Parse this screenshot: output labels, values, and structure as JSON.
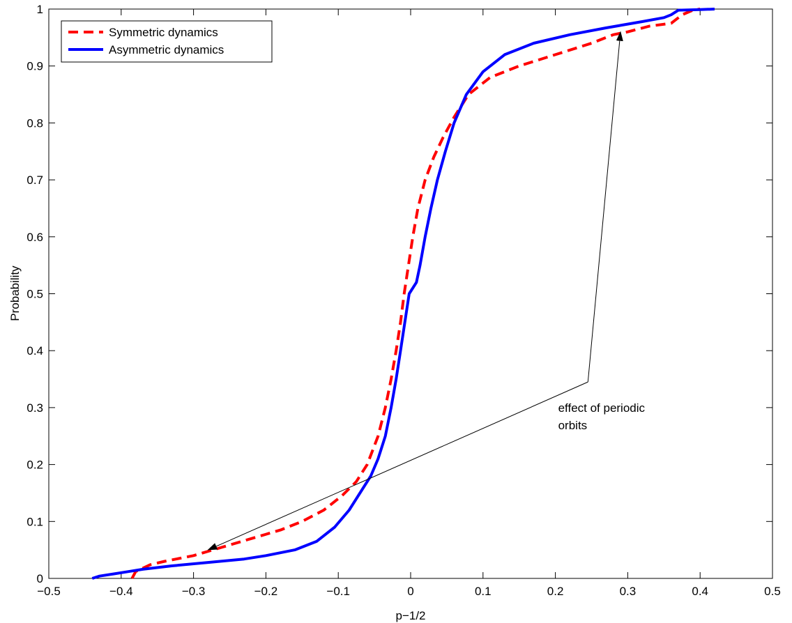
{
  "chart_data": {
    "type": "line",
    "title": "",
    "xlabel": "p−1/2",
    "ylabel": "Probability",
    "xlim": [
      -0.5,
      0.5
    ],
    "ylim": [
      0,
      1
    ],
    "xticks": [
      -0.5,
      -0.4,
      -0.3,
      -0.2,
      -0.1,
      0,
      0.1,
      0.2,
      0.3,
      0.4,
      0.5
    ],
    "xtick_labels": [
      "−0.5",
      "−0.4",
      "−0.3",
      "−0.2",
      "−0.1",
      "0",
      "0.1",
      "0.2",
      "0.3",
      "0.4",
      "0.5"
    ],
    "yticks": [
      0,
      0.1,
      0.2,
      0.3,
      0.4,
      0.5,
      0.6,
      0.7,
      0.8,
      0.9,
      1
    ],
    "ytick_labels": [
      "0",
      "0.1",
      "0.2",
      "0.3",
      "0.4",
      "0.5",
      "0.6",
      "0.7",
      "0.8",
      "0.9",
      "1"
    ],
    "grid": false,
    "legend_position": "top-left",
    "series": [
      {
        "name": "Symmetric dynamics",
        "color": "#ff0000",
        "style": "dashed",
        "points": [
          [
            -0.385,
            0
          ],
          [
            -0.38,
            0.012
          ],
          [
            -0.36,
            0.024
          ],
          [
            -0.34,
            0.03
          ],
          [
            -0.3,
            0.04
          ],
          [
            -0.26,
            0.055
          ],
          [
            -0.22,
            0.07
          ],
          [
            -0.18,
            0.085
          ],
          [
            -0.15,
            0.1
          ],
          [
            -0.12,
            0.12
          ],
          [
            -0.095,
            0.145
          ],
          [
            -0.075,
            0.17
          ],
          [
            -0.06,
            0.2
          ],
          [
            -0.045,
            0.25
          ],
          [
            -0.035,
            0.3
          ],
          [
            -0.027,
            0.35
          ],
          [
            -0.02,
            0.4
          ],
          [
            -0.014,
            0.45
          ],
          [
            -0.009,
            0.5
          ],
          [
            -0.003,
            0.55
          ],
          [
            0.003,
            0.6
          ],
          [
            0.01,
            0.65
          ],
          [
            0.02,
            0.7
          ],
          [
            0.032,
            0.74
          ],
          [
            0.045,
            0.775
          ],
          [
            0.06,
            0.81
          ],
          [
            0.08,
            0.85
          ],
          [
            0.11,
            0.88
          ],
          [
            0.15,
            0.9
          ],
          [
            0.2,
            0.92
          ],
          [
            0.25,
            0.94
          ],
          [
            0.28,
            0.955
          ],
          [
            0.3,
            0.96
          ],
          [
            0.33,
            0.97
          ],
          [
            0.36,
            0.975
          ],
          [
            0.37,
            0.985
          ],
          [
            0.375,
            0.99
          ],
          [
            0.39,
            0.998
          ],
          [
            0.4,
            1.0
          ]
        ]
      },
      {
        "name": "Asymmetric dynamics",
        "color": "#0000ff",
        "style": "solid",
        "points": [
          [
            -0.44,
            0
          ],
          [
            -0.43,
            0.004
          ],
          [
            -0.41,
            0.008
          ],
          [
            -0.39,
            0.012
          ],
          [
            -0.37,
            0.016
          ],
          [
            -0.33,
            0.022
          ],
          [
            -0.28,
            0.028
          ],
          [
            -0.23,
            0.034
          ],
          [
            -0.2,
            0.04
          ],
          [
            -0.16,
            0.05
          ],
          [
            -0.13,
            0.065
          ],
          [
            -0.105,
            0.09
          ],
          [
            -0.085,
            0.12
          ],
          [
            -0.07,
            0.15
          ],
          [
            -0.055,
            0.18
          ],
          [
            -0.045,
            0.21
          ],
          [
            -0.035,
            0.25
          ],
          [
            -0.027,
            0.3
          ],
          [
            -0.02,
            0.35
          ],
          [
            -0.014,
            0.4
          ],
          [
            -0.008,
            0.45
          ],
          [
            -0.002,
            0.5
          ],
          [
            0.008,
            0.52
          ],
          [
            0.013,
            0.55
          ],
          [
            0.02,
            0.6
          ],
          [
            0.028,
            0.65
          ],
          [
            0.037,
            0.7
          ],
          [
            0.048,
            0.75
          ],
          [
            0.06,
            0.8
          ],
          [
            0.077,
            0.85
          ],
          [
            0.1,
            0.89
          ],
          [
            0.13,
            0.92
          ],
          [
            0.17,
            0.94
          ],
          [
            0.22,
            0.955
          ],
          [
            0.27,
            0.967
          ],
          [
            0.32,
            0.978
          ],
          [
            0.35,
            0.985
          ],
          [
            0.36,
            0.99
          ],
          [
            0.37,
            0.998
          ],
          [
            0.4,
            0.999
          ],
          [
            0.42,
            1.0
          ]
        ]
      }
    ],
    "annotation": {
      "lines": [
        "effect of periodic",
        "orbits"
      ],
      "anchor": [
        0.245,
        0.345
      ],
      "text_at": [
        0.2,
        0.3
      ],
      "arrow_targets": [
        [
          -0.28,
          0.05
        ],
        [
          0.29,
          0.96
        ]
      ]
    }
  }
}
